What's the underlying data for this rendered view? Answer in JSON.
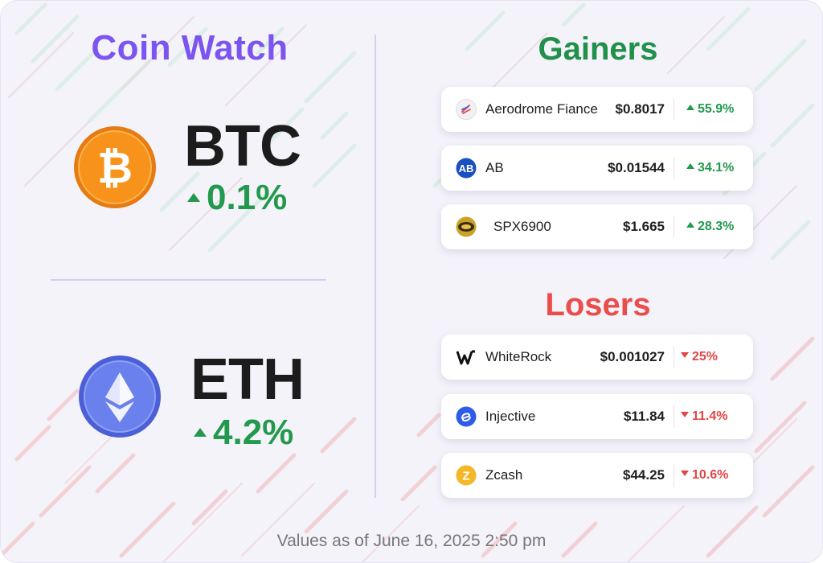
{
  "title": "Coin Watch",
  "btc": {
    "symbol": "BTC",
    "change": "0.1%",
    "icon": "bitcoin-icon"
  },
  "eth": {
    "symbol": "ETH",
    "change": "4.2%",
    "icon": "ethereum-icon"
  },
  "gainers": {
    "heading": "Gainers",
    "items": [
      {
        "name": "Aerodrome Fiance",
        "price": "$0.8017",
        "change": "55.9%",
        "icon": "aerodrome-icon"
      },
      {
        "name": "AB",
        "price": "$0.01544",
        "change": "34.1%",
        "icon": "ab-icon"
      },
      {
        "name": "SPX6900",
        "price": "$1.665",
        "change": "28.3%",
        "icon": "spx6900-icon"
      }
    ]
  },
  "losers": {
    "heading": "Losers",
    "items": [
      {
        "name": "WhiteRock",
        "price": "$0.001027",
        "change": "25%",
        "icon": "whiterock-icon"
      },
      {
        "name": "Injective",
        "price": "$11.84",
        "change": "11.4%",
        "icon": "injective-icon"
      },
      {
        "name": "Zcash",
        "price": "$44.25",
        "change": "10.6%",
        "icon": "zcash-icon"
      }
    ]
  },
  "footer": "Values as of June 16, 2025 2:50 pm",
  "colors": {
    "title": "#7c55f0",
    "up": "#22994d",
    "down": "#e24545",
    "gainers": "#20904a",
    "losers": "#ea4d4a"
  }
}
